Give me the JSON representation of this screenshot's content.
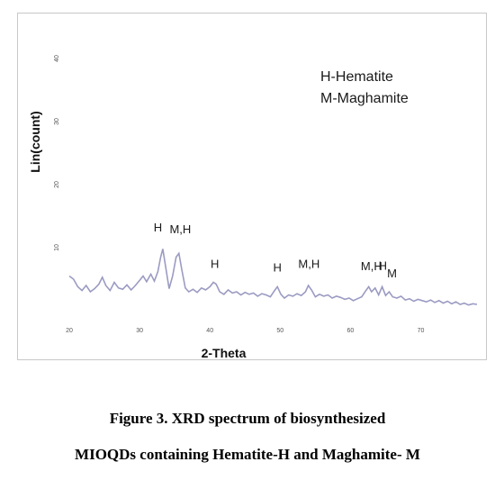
{
  "chart_data": {
    "type": "line",
    "xlabel": "2-Theta",
    "ylabel": "Lin(count)",
    "xlim": [
      20,
      78
    ],
    "ylim": [
      0,
      45
    ],
    "x_ticks": [
      20,
      30,
      40,
      50,
      60,
      70
    ],
    "y_ticks": [
      10,
      20,
      30,
      40
    ],
    "grid": false,
    "legend": [
      "H-Hematite",
      "M-Maghamite"
    ],
    "legend_position": "top-right",
    "line_color": "#9b9bc3",
    "series": [
      {
        "x": [
          20,
          20.6,
          21.2,
          21.8,
          22.4,
          23.0,
          23.6,
          24.2,
          24.7,
          25.2,
          25.8,
          26.4,
          27.0,
          27.6,
          28.2,
          28.8,
          29.4,
          30.0,
          30.5,
          31.0,
          31.6,
          32.1,
          32.6,
          33.0,
          33.3,
          33.7,
          34.2,
          34.7,
          35.2,
          35.6,
          36.0,
          36.5,
          37.0,
          37.6,
          38.2,
          38.8,
          39.4,
          40.0,
          40.5,
          40.9,
          41.4,
          42.0,
          42.6,
          43.2,
          43.8,
          44.4,
          45.0,
          45.6,
          46.2,
          46.8,
          47.4,
          48.0,
          48.6,
          49.2,
          49.6,
          50.1,
          50.6,
          51.2,
          51.8,
          52.4,
          53.0,
          53.6,
          54.0,
          54.5,
          55.0,
          55.6,
          56.2,
          56.8,
          57.4,
          58.0,
          58.6,
          59.2,
          59.8,
          60.4,
          61.0,
          61.6,
          62.2,
          62.6,
          63.0,
          63.5,
          64.0,
          64.5,
          65.0,
          65.5,
          66.0,
          66.6,
          67.2,
          67.8,
          68.4,
          69.0,
          69.6,
          70.2,
          70.8,
          71.4,
          72.0,
          72.6,
          73.2,
          73.8,
          74.4,
          75.0,
          75.6,
          76.2,
          76.8,
          77.4,
          78.0
        ],
        "y": [
          5.5,
          5.0,
          3.8,
          3.2,
          4.0,
          3.0,
          3.5,
          4.2,
          5.3,
          4.0,
          3.2,
          4.5,
          3.6,
          3.4,
          4.1,
          3.3,
          4.0,
          4.8,
          5.5,
          4.6,
          5.8,
          4.7,
          6.2,
          8.5,
          9.8,
          7.0,
          3.5,
          5.5,
          8.5,
          9.1,
          6.5,
          3.6,
          3.0,
          3.4,
          2.9,
          3.6,
          3.3,
          3.8,
          4.5,
          4.2,
          3.0,
          2.6,
          3.3,
          2.8,
          3.0,
          2.5,
          2.9,
          2.6,
          2.8,
          2.3,
          2.7,
          2.5,
          2.2,
          3.2,
          3.8,
          2.6,
          2.0,
          2.5,
          2.3,
          2.7,
          2.4,
          3.0,
          4.0,
          3.2,
          2.2,
          2.6,
          2.3,
          2.5,
          2.0,
          2.3,
          2.1,
          1.8,
          2.0,
          1.6,
          1.9,
          2.2,
          3.2,
          3.8,
          3.0,
          3.6,
          2.5,
          3.8,
          2.4,
          3.0,
          2.2,
          2.0,
          2.3,
          1.7,
          1.9,
          1.5,
          1.8,
          1.6,
          1.4,
          1.7,
          1.3,
          1.6,
          1.2,
          1.5,
          1.1,
          1.4,
          1.0,
          1.2,
          0.9,
          1.1,
          1.0
        ]
      }
    ],
    "annotations": [
      {
        "text": "H",
        "x": 32.6,
        "y": 12.6
      },
      {
        "text": "M,H",
        "x": 35.8,
        "y": 12.3
      },
      {
        "text": "H",
        "x": 40.7,
        "y": 6.8
      },
      {
        "text": "H",
        "x": 49.6,
        "y": 6.2
      },
      {
        "text": "M,H",
        "x": 54.1,
        "y": 6.8
      },
      {
        "text": "M,H",
        "x": 63.0,
        "y": 6.4
      },
      {
        "text": "H",
        "x": 64.6,
        "y": 6.5
      },
      {
        "text": "M",
        "x": 65.9,
        "y": 5.3
      }
    ]
  },
  "caption": {
    "line1": "Figure 3. XRD spectrum of biosynthesized",
    "line2": "MIOQDs containing Hematite-H and Maghamite- M"
  }
}
